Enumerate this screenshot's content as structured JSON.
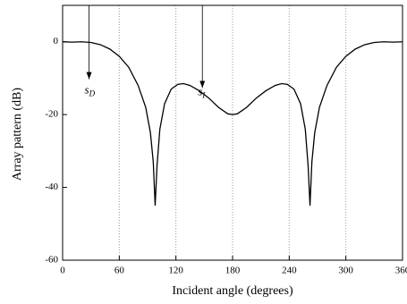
{
  "chart_data": {
    "type": "line",
    "xlabel": "Incident angle (degrees)",
    "ylabel": "Array pattern (dB)",
    "x": [
      0,
      10,
      20,
      30,
      40,
      50,
      60,
      70,
      80,
      88,
      93,
      96,
      98,
      100,
      103,
      108,
      115,
      122,
      128,
      135,
      145,
      155,
      165,
      175,
      180,
      185,
      195,
      205,
      215,
      225,
      232,
      238,
      245,
      252,
      257,
      260,
      262,
      264,
      267,
      272,
      280,
      290,
      300,
      310,
      320,
      330,
      340,
      350,
      360
    ],
    "values": [
      0,
      -0.1,
      0,
      -0.2,
      -0.8,
      -2,
      -4,
      -7,
      -12,
      -18,
      -25,
      -33,
      -45,
      -34,
      -24,
      -17,
      -13,
      -11.7,
      -11.5,
      -12,
      -13.5,
      -15.5,
      -18,
      -19.8,
      -20,
      -19.8,
      -18,
      -15.5,
      -13.5,
      -12,
      -11.5,
      -11.7,
      -13,
      -17,
      -24,
      -34,
      -45,
      -33,
      -25,
      -18,
      -12,
      -7,
      -4,
      -2,
      -0.8,
      -0.2,
      0,
      -0.1,
      0
    ],
    "color": "#000000",
    "xlim": [
      0,
      360
    ],
    "xticks": [
      0,
      60,
      120,
      180,
      240,
      300,
      360
    ],
    "ylim": [
      -60,
      10
    ],
    "yticks": [
      -60,
      -40,
      -20,
      0
    ],
    "grid": "x",
    "annotations": [
      {
        "text": "s",
        "sub": "D",
        "x": 28,
        "y": -10.3,
        "label_y": -13.5
      },
      {
        "text": "s",
        "sub": "I",
        "x": 148,
        "y": -12.7,
        "label_y": -14
      }
    ]
  }
}
